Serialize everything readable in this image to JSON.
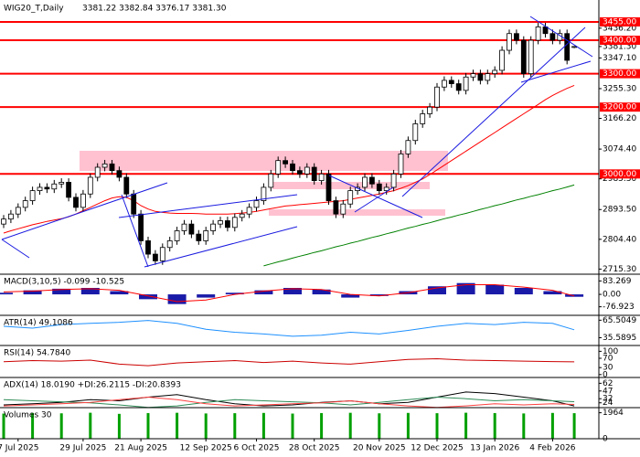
{
  "chart_data": [
    {
      "type": "candlestick",
      "title": "WIG20_T,Daily",
      "ohlc_readout": "3381.22 3382.84 3376.17 3381.30",
      "categories": [
        null,
        null,
        "7 Jul 2025",
        null,
        null,
        null,
        null,
        null,
        null,
        null,
        null,
        "29 Jul 2025",
        null,
        null,
        null,
        null,
        null,
        null,
        null,
        "21 Aug 2025",
        null,
        null,
        null,
        null,
        null,
        null,
        null,
        null,
        "12 Sep 2025",
        null,
        null,
        null,
        null,
        null,
        null,
        "6 Oct 2025",
        null,
        null,
        null,
        null,
        null,
        null,
        null,
        "28 Oct 2025",
        null,
        null,
        null,
        null,
        null,
        null,
        null,
        null,
        "20 Nov 2025",
        null,
        null,
        null,
        null,
        null,
        null,
        null,
        "12 Dec 2025",
        null,
        null,
        null,
        null,
        null,
        null,
        null,
        "13 Jan 2026",
        null,
        null,
        null,
        null,
        null,
        null,
        null,
        "4 Feb 2026",
        null,
        null,
        null
      ],
      "ohlc": [
        [
          2850,
          2877,
          2838,
          2865
        ],
        [
          2865,
          2892,
          2853,
          2880
        ],
        [
          2880,
          2912,
          2868,
          2900
        ],
        [
          2900,
          2932,
          2888,
          2920
        ],
        [
          2920,
          2962,
          2908,
          2950
        ],
        [
          2950,
          2972,
          2938,
          2960
        ],
        [
          2960,
          2972,
          2943,
          2955
        ],
        [
          2955,
          2982,
          2943,
          2970
        ],
        [
          2970,
          2987,
          2958,
          2975
        ],
        [
          2975,
          2987,
          2918,
          2930
        ],
        [
          2930,
          2942,
          2888,
          2900
        ],
        [
          2900,
          2952,
          2888,
          2940
        ],
        [
          2940,
          3002,
          2928,
          2990
        ],
        [
          2990,
          3032,
          2978,
          3020
        ],
        [
          3020,
          3042,
          3008,
          3030
        ],
        [
          3030,
          3042,
          2998,
          3010
        ],
        [
          3010,
          3022,
          2978,
          2990
        ],
        [
          2990,
          3002,
          2928,
          2940
        ],
        [
          2940,
          2952,
          2868,
          2880
        ],
        [
          2880,
          2892,
          2788,
          2800
        ],
        [
          2800,
          2812,
          2748,
          2760
        ],
        [
          2760,
          2772,
          2728,
          2740
        ],
        [
          2740,
          2792,
          2728,
          2780
        ],
        [
          2780,
          2812,
          2768,
          2800
        ],
        [
          2800,
          2842,
          2788,
          2830
        ],
        [
          2830,
          2862,
          2818,
          2850
        ],
        [
          2850,
          2862,
          2808,
          2820
        ],
        [
          2820,
          2832,
          2788,
          2800
        ],
        [
          2800,
          2842,
          2788,
          2830
        ],
        [
          2830,
          2862,
          2818,
          2850
        ],
        [
          2850,
          2872,
          2838,
          2860
        ],
        [
          2860,
          2872,
          2828,
          2840
        ],
        [
          2840,
          2882,
          2828,
          2870
        ],
        [
          2870,
          2892,
          2858,
          2880
        ],
        [
          2880,
          2912,
          2868,
          2900
        ],
        [
          2900,
          2932,
          2888,
          2920
        ],
        [
          2920,
          2972,
          2908,
          2960
        ],
        [
          2960,
          3012,
          2948,
          3000
        ],
        [
          3000,
          3052,
          2988,
          3040
        ],
        [
          3040,
          3052,
          3018,
          3030
        ],
        [
          3030,
          3042,
          2998,
          3010
        ],
        [
          3010,
          3022,
          2988,
          3000
        ],
        [
          3000,
          3032,
          2988,
          3020
        ],
        [
          3020,
          3032,
          2968,
          2980
        ],
        [
          2980,
          3012,
          2968,
          3000
        ],
        [
          3000,
          3012,
          2908,
          2920
        ],
        [
          2920,
          2932,
          2868,
          2880
        ],
        [
          2880,
          2922,
          2868,
          2910
        ],
        [
          2910,
          2962,
          2898,
          2950
        ],
        [
          2950,
          2972,
          2938,
          2960
        ],
        [
          2960,
          3002,
          2948,
          2990
        ],
        [
          2990,
          3002,
          2958,
          2970
        ],
        [
          2970,
          2982,
          2938,
          2950
        ],
        [
          2950,
          2972,
          2938,
          2960
        ],
        [
          2960,
          3012,
          2948,
          3000
        ],
        [
          3000,
          3072,
          2988,
          3060
        ],
        [
          3060,
          3112,
          3048,
          3100
        ],
        [
          3100,
          3162,
          3088,
          3150
        ],
        [
          3150,
          3192,
          3138,
          3180
        ],
        [
          3180,
          3212,
          3168,
          3200
        ],
        [
          3200,
          3272,
          3188,
          3260
        ],
        [
          3260,
          3292,
          3248,
          3280
        ],
        [
          3280,
          3292,
          3258,
          3270
        ],
        [
          3270,
          3282,
          3238,
          3250
        ],
        [
          3250,
          3302,
          3238,
          3290
        ],
        [
          3290,
          3312,
          3278,
          3300
        ],
        [
          3300,
          3312,
          3268,
          3280
        ],
        [
          3280,
          3312,
          3268,
          3300
        ],
        [
          3300,
          3322,
          3288,
          3310
        ],
        [
          3310,
          3382,
          3298,
          3370
        ],
        [
          3370,
          3432,
          3358,
          3420
        ],
        [
          3420,
          3432,
          3388,
          3400
        ],
        [
          3400,
          3412,
          3288,
          3300
        ],
        [
          3300,
          3412,
          3288,
          3400
        ],
        [
          3400,
          3452,
          3388,
          3440
        ],
        [
          3440,
          3452,
          3408,
          3420
        ],
        [
          3420,
          3432,
          3388,
          3400
        ],
        [
          3400,
          3432,
          3388,
          3420
        ],
        [
          3420,
          3432,
          3328,
          3340
        ],
        [
          3381.22,
          3382.84,
          3376.17,
          3381.3
        ]
      ],
      "up_color": "#ffffff",
      "down_color": "#000000",
      "series": [
        {
          "color": "#ff0000",
          "values": [
            2823,
            2830,
            2836,
            2842,
            2848,
            2853,
            2858,
            2862,
            2866,
            2872,
            2880,
            2890,
            2900,
            2910,
            2920,
            2928,
            2932,
            2930,
            2920,
            2905,
            2895,
            2888,
            2885,
            2883,
            2882,
            2882,
            2882,
            2881,
            2880,
            2880,
            2880,
            2880,
            2881,
            2883,
            2885,
            2888,
            2892,
            2896,
            2900,
            2904,
            2906,
            2908,
            2910,
            2912,
            2914,
            2916,
            2918,
            2920,
            2924,
            2928,
            2932,
            2936,
            2940,
            2945,
            2950,
            2957,
            2965,
            2975,
            2985,
            2998,
            3012,
            3026,
            3040,
            3054,
            3068,
            3082,
            3096,
            3110,
            3124,
            3138,
            3152,
            3166,
            3180,
            3194,
            3208,
            3222,
            3235,
            3246,
            3256,
            3265
          ]
        },
        {
          "color": "#008000",
          "values": [
            null,
            null,
            null,
            null,
            null,
            null,
            null,
            null,
            null,
            null,
            null,
            null,
            null,
            null,
            null,
            null,
            null,
            null,
            null,
            null,
            null,
            null,
            null,
            null,
            null,
            null,
            null,
            null,
            null,
            null,
            null,
            null,
            null,
            null,
            null,
            null,
            2725,
            2731,
            2737,
            2742,
            2748,
            2754,
            2759,
            2765,
            2770,
            2776,
            2782,
            2787,
            2793,
            2798,
            2804,
            2810,
            2815,
            2821,
            2826,
            2832,
            2838,
            2843,
            2849,
            2854,
            2860,
            2866,
            2871,
            2877,
            2882,
            2888,
            2894,
            2899,
            2905,
            2910,
            2916,
            2922,
            2927,
            2933,
            2938,
            2944,
            2950,
            2955,
            2961,
            2967
          ]
        }
      ],
      "levels": [
        {
          "value": 3455,
          "label": "3455.00"
        },
        {
          "value": 3400,
          "label": "3400.00"
        },
        {
          "value": 3300,
          "label": "3300.00"
        },
        {
          "value": 3200,
          "label": "3200.00"
        },
        {
          "value": 3000,
          "label": "3000.00"
        }
      ],
      "level_color": "#ff0000",
      "ylim": [
        2700,
        3515
      ],
      "yticks": [
        {
          "value": 3436.2,
          "label": "3436.20"
        },
        {
          "value": 3381.3,
          "label": "3381.30"
        },
        {
          "value": 3347.1,
          "label": "3347.10"
        },
        {
          "value": 3255.3,
          "label": "3255.30"
        },
        {
          "value": 3166.2,
          "label": "3166.20"
        },
        {
          "value": 3074.4,
          "label": "3074.40"
        },
        {
          "value": 2985.3,
          "label": "2985.30"
        },
        {
          "value": 2893.5,
          "label": "2893.50"
        },
        {
          "value": 2804.4,
          "label": "2804.40"
        },
        {
          "value": 2715.3,
          "label": "2715.30"
        }
      ]
    },
    {
      "type": "macd",
      "title": "MACD(3,10,5) -0.099 -10.525",
      "x": [
        0,
        4,
        8,
        12,
        16,
        20,
        24,
        28,
        32,
        36,
        40,
        44,
        48,
        52,
        56,
        60,
        64,
        68,
        72,
        76,
        79
      ],
      "series": [
        {
          "color": "#1a1aa8",
          "values": [
            10,
            25,
            35,
            40,
            20,
            -30,
            -60,
            -20,
            10,
            25,
            40,
            30,
            -20,
            -10,
            20,
            50,
            70,
            60,
            40,
            20,
            -15
          ]
        },
        {
          "color": "#ff0000",
          "values": [
            15,
            20,
            30,
            35,
            25,
            -10,
            -45,
            -35,
            0,
            20,
            35,
            30,
            0,
            -10,
            10,
            40,
            60,
            60,
            45,
            25,
            -10
          ]
        }
      ],
      "ylim": [
        -130,
        125
      ],
      "yticks": [
        83.269,
        {
          "value": 0,
          "label": "0.00"
        },
        -76.923
      ]
    },
    {
      "type": "line",
      "title": "ATR(14) 49.1086",
      "x": [
        0,
        4,
        8,
        12,
        16,
        20,
        24,
        28,
        32,
        36,
        40,
        44,
        48,
        52,
        56,
        60,
        64,
        68,
        72,
        76,
        79
      ],
      "series": [
        {
          "color": "#1e90ff",
          "values": [
            55,
            52,
            58,
            60,
            62,
            65,
            60,
            50,
            45,
            42,
            38,
            40,
            45,
            42,
            48,
            55,
            60,
            58,
            62,
            60,
            49.1086
          ]
        }
      ],
      "ylim": [
        22.3,
        73.8
      ],
      "yticks": [
        65.5049,
        35.5895
      ]
    },
    {
      "type": "line",
      "title": "RSI(14) 54.7840",
      "x": [
        0,
        4,
        8,
        12,
        16,
        20,
        24,
        28,
        32,
        36,
        40,
        44,
        48,
        52,
        56,
        60,
        64,
        68,
        72,
        76,
        79
      ],
      "series": [
        {
          "color": "#cc0000",
          "values": [
            55,
            60,
            58,
            62,
            45,
            38,
            50,
            55,
            60,
            52,
            58,
            50,
            45,
            55,
            65,
            68,
            62,
            60,
            58,
            56,
            54.784
          ]
        }
      ],
      "ylim": [
        -12.5,
        125
      ],
      "yticks": [
        100,
        70,
        30,
        0
      ]
    },
    {
      "type": "line",
      "title": "ADX(14) 18.0190 +DI:26.2115 -DI:20.8393",
      "x": [
        0,
        4,
        8,
        12,
        16,
        20,
        24,
        28,
        32,
        36,
        40,
        44,
        48,
        52,
        56,
        60,
        64,
        68,
        72,
        76,
        79
      ],
      "series": [
        {
          "color": "#000000",
          "values": [
            20,
            22,
            25,
            30,
            28,
            35,
            40,
            30,
            22,
            18,
            20,
            25,
            28,
            22,
            25,
            35,
            45,
            42,
            35,
            28,
            18.019
          ]
        },
        {
          "color": "#2e8b57",
          "values": [
            30,
            28,
            26,
            24,
            20,
            15,
            18,
            25,
            30,
            28,
            26,
            24,
            20,
            25,
            30,
            35,
            32,
            28,
            30,
            28,
            26.2115
          ]
        },
        {
          "color": "#ff4040",
          "values": [
            18,
            20,
            22,
            25,
            30,
            35,
            30,
            22,
            18,
            20,
            22,
            24,
            28,
            22,
            18,
            15,
            18,
            22,
            20,
            22,
            20.8393
          ]
        }
      ],
      "ylim": [
        14.6,
        73.3
      ],
      "yticks": [
        62,
        47,
        32,
        24
      ]
    },
    {
      "type": "volume",
      "title": "Volumes 30",
      "x": [
        0,
        4,
        8,
        12,
        16,
        20,
        24,
        28,
        32,
        36,
        40,
        44,
        48,
        52,
        56,
        60,
        64,
        68,
        72,
        76,
        79
      ],
      "color": "#00a000",
      "values": [
        1900,
        1950,
        1920,
        1964,
        1880,
        1940,
        1960,
        1910,
        1930,
        1950,
        1900,
        1940,
        1960,
        1920,
        1950,
        1930,
        1964,
        1940,
        1910,
        1950,
        1930
      ],
      "ylim": [
        0,
        2350
      ],
      "yticks": [
        1964,
        0
      ]
    }
  ]
}
